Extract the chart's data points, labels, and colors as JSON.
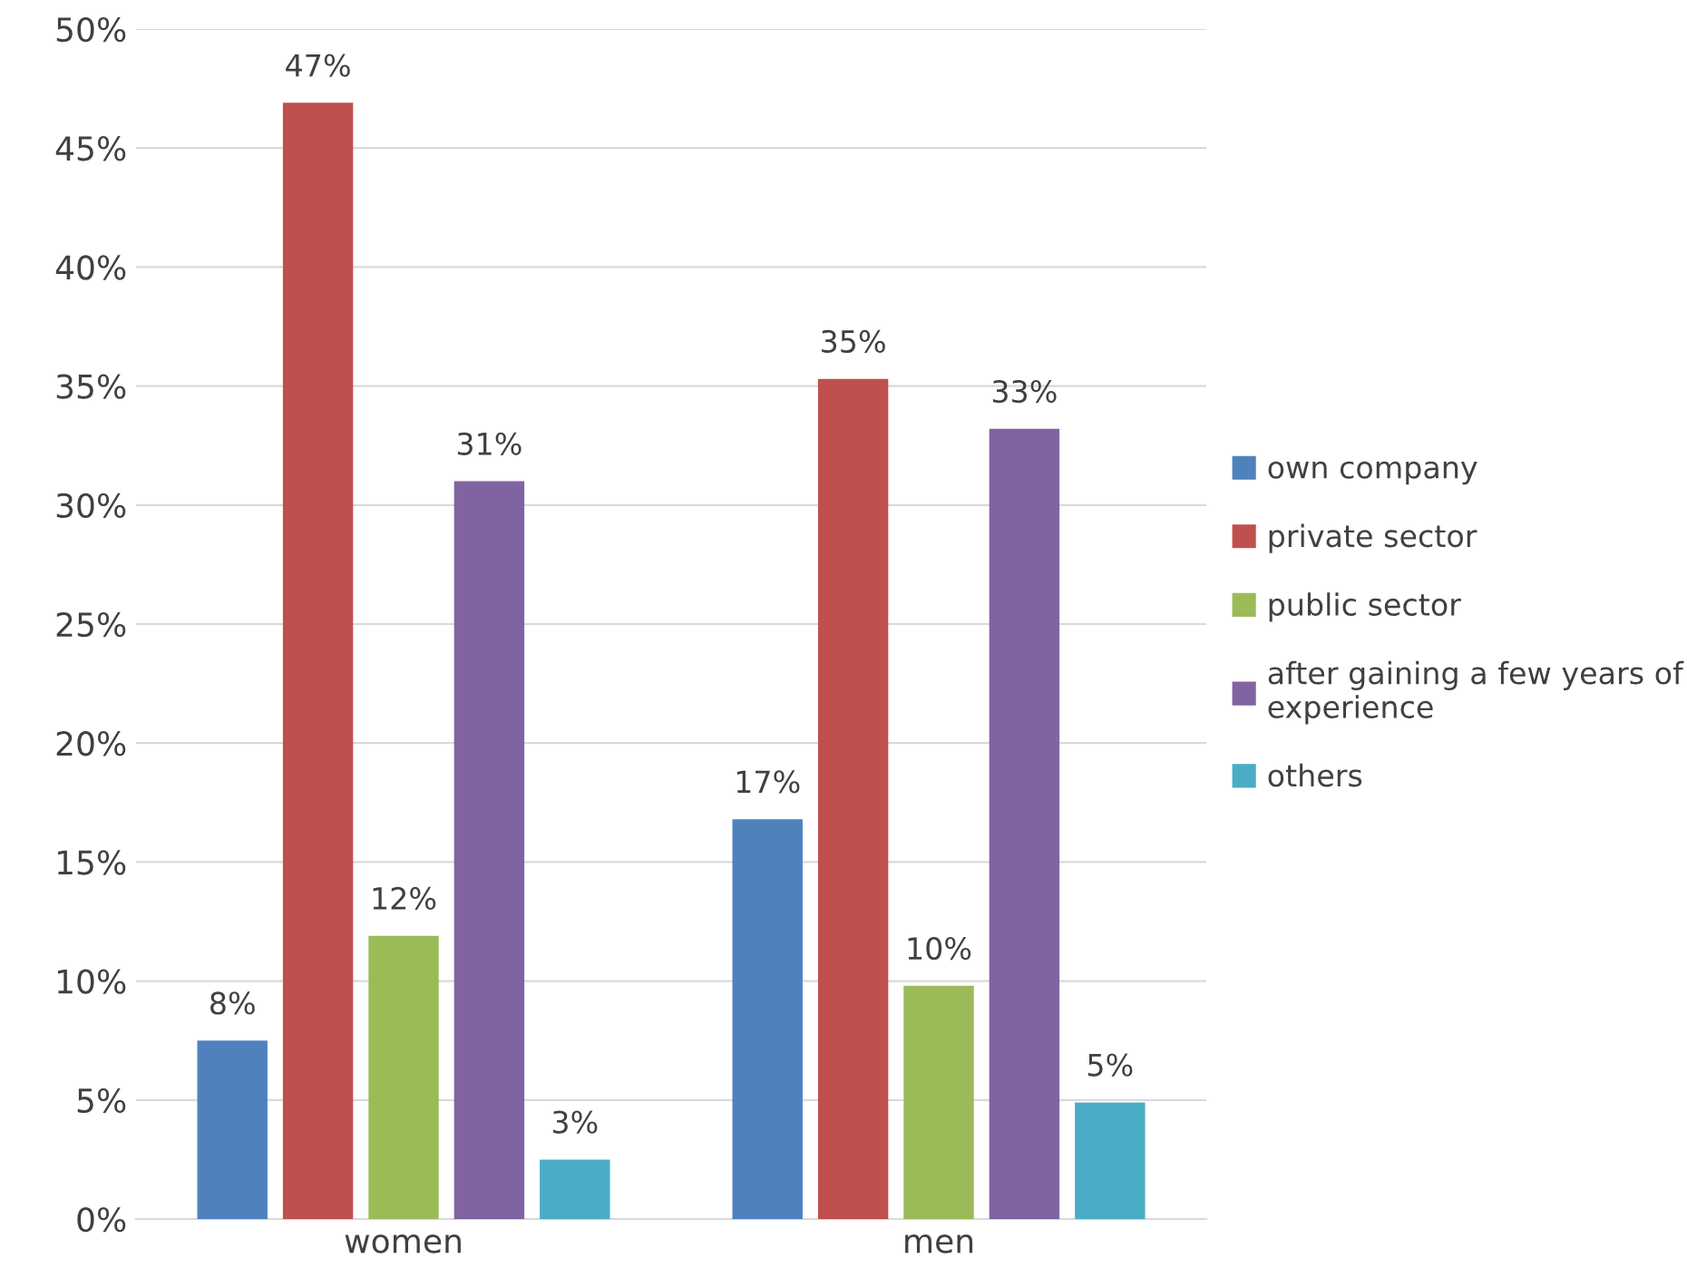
{
  "chart_data": {
    "type": "bar",
    "categories": [
      "women",
      "men"
    ],
    "series": [
      {
        "name": "own company",
        "color": "#4f81bd",
        "values": [
          7.5,
          16.8
        ],
        "value_labels": [
          "8%",
          "17%"
        ]
      },
      {
        "name": "private sector",
        "color": "#c0504d",
        "values": [
          46.9,
          35.3
        ],
        "value_labels": [
          "47%",
          "35%"
        ]
      },
      {
        "name": "public sector",
        "color": "#9bbb59",
        "values": [
          11.9,
          9.8
        ],
        "value_labels": [
          "12%",
          "10%"
        ]
      },
      {
        "name": "after gaining a few years of\nexperience",
        "color": "#8064a2",
        "values": [
          31.0,
          33.2
        ],
        "value_labels": [
          "31%",
          "33%"
        ]
      },
      {
        "name": "others",
        "color": "#4bacc6",
        "values": [
          2.5,
          4.9
        ],
        "value_labels": [
          "3%",
          "5%"
        ]
      }
    ],
    "ylim": [
      0,
      50
    ],
    "yticks": [
      {
        "value": 0,
        "label": "0%"
      },
      {
        "value": 5,
        "label": "5%"
      },
      {
        "value": 10,
        "label": "10%"
      },
      {
        "value": 15,
        "label": "15%"
      },
      {
        "value": 20,
        "label": "20%"
      },
      {
        "value": 25,
        "label": "25%"
      },
      {
        "value": 30,
        "label": "30%"
      },
      {
        "value": 35,
        "label": "35%"
      },
      {
        "value": 40,
        "label": "40%"
      },
      {
        "value": 45,
        "label": "45%"
      },
      {
        "value": 50,
        "label": "50%"
      }
    ],
    "grid": "y",
    "legend": "right"
  }
}
